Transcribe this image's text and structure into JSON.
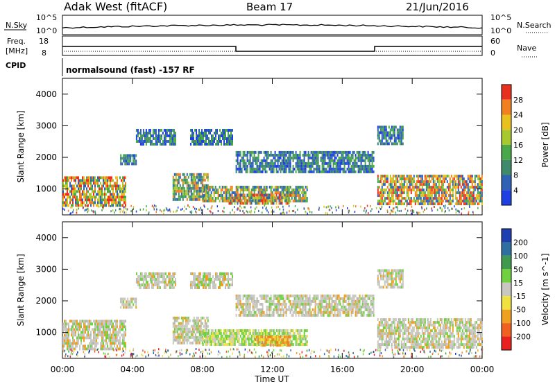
{
  "header": {
    "station": "Adak West (fitACF)",
    "beam": "Beam 17",
    "date": "21/Jun/2016"
  },
  "panels": {
    "nsky_label": "N.Sky",
    "nsearch_label": "N.Search",
    "nsky_ticks": [
      "10^5",
      "10^0"
    ],
    "nsearch_ticks": [
      "10^5",
      "10^0"
    ],
    "freq_label_line1": "Freq.",
    "freq_label_line2": "[MHz]",
    "freq_ticks": [
      "18",
      "8"
    ],
    "nave_label": "Nave",
    "nave_ticks": [
      "60",
      "0"
    ],
    "cpid_label": "CPID",
    "cpid_text": "normalsound (fast) -157 RF"
  },
  "chart_data": [
    {
      "type": "heatmap",
      "title": "",
      "ylabel": "Slant Range [km]",
      "xlabel": "",
      "x": [
        "00:00",
        "04:00",
        "08:00",
        "12:00",
        "16:00",
        "20:00",
        "00:00"
      ],
      "yticks": [
        1000,
        2000,
        3000,
        4000
      ],
      "ylim": [
        180,
        4500
      ],
      "colorbar": {
        "label": "Power [dB]",
        "ticks": [
          4,
          8,
          12,
          16,
          20,
          24,
          28
        ],
        "colors": [
          "#1f3fe0",
          "#2f62b5",
          "#3f8a6a",
          "#48a84a",
          "#a8c830",
          "#e8c020",
          "#f08020",
          "#e83020"
        ]
      },
      "series": [
        {
          "t_start": 0.0,
          "t_end": 3.6,
          "r_low": 500,
          "r_high": 1400,
          "level": "high"
        },
        {
          "t_start": 3.3,
          "t_end": 4.2,
          "r_low": 1800,
          "r_high": 2100,
          "level": "low"
        },
        {
          "t_start": 4.2,
          "t_end": 6.5,
          "r_low": 2400,
          "r_high": 2900,
          "level": "low"
        },
        {
          "t_start": 7.3,
          "t_end": 9.7,
          "r_low": 2400,
          "r_high": 2900,
          "level": "low"
        },
        {
          "t_start": 6.3,
          "t_end": 8.3,
          "r_low": 700,
          "r_high": 1500,
          "level": "mid"
        },
        {
          "t_start": 8.0,
          "t_end": 14.0,
          "r_low": 600,
          "r_high": 1100,
          "level": "mid"
        },
        {
          "t_start": 9.5,
          "t_end": 13.0,
          "r_low": 500,
          "r_high": 850,
          "level": "high"
        },
        {
          "t_start": 9.9,
          "t_end": 17.8,
          "r_low": 1550,
          "r_high": 2200,
          "level": "low"
        },
        {
          "t_start": 18.0,
          "t_end": 24.0,
          "r_low": 500,
          "r_high": 1450,
          "level": "high"
        },
        {
          "t_start": 18.0,
          "t_end": 19.5,
          "r_low": 2400,
          "r_high": 3000,
          "level": "low"
        }
      ]
    },
    {
      "type": "heatmap",
      "title": "",
      "ylabel": "Slant Range [km]",
      "xlabel": "Time UT",
      "x": [
        "00:00",
        "04:00",
        "08:00",
        "12:00",
        "16:00",
        "20:00",
        "00:00"
      ],
      "yticks": [
        1000,
        2000,
        3000,
        4000
      ],
      "ylim": [
        180,
        4500
      ],
      "colorbar": {
        "label": "Velocity [m s^-1]",
        "ticks": [
          200,
          100,
          50,
          15,
          -15,
          -50,
          -100,
          -200
        ],
        "colors": [
          "#1f3fb0",
          "#2f6fa0",
          "#3f9a50",
          "#70d040",
          "#c8c8c0",
          "#f0e040",
          "#f0a020",
          "#f06020",
          "#e82020"
        ]
      },
      "series": [
        {
          "t_start": 0.0,
          "t_end": 3.6,
          "r_low": 500,
          "r_high": 1400,
          "level": "grey"
        },
        {
          "t_start": 3.3,
          "t_end": 4.2,
          "r_low": 1800,
          "r_high": 2100,
          "level": "grey"
        },
        {
          "t_start": 4.2,
          "t_end": 6.5,
          "r_low": 2400,
          "r_high": 2900,
          "level": "grey"
        },
        {
          "t_start": 7.3,
          "t_end": 9.7,
          "r_low": 2400,
          "r_high": 2900,
          "level": "grey"
        },
        {
          "t_start": 6.3,
          "t_end": 8.3,
          "r_low": 700,
          "r_high": 1500,
          "level": "grey"
        },
        {
          "t_start": 8.0,
          "t_end": 14.0,
          "r_low": 600,
          "r_high": 1100,
          "level": "green"
        },
        {
          "t_start": 11.0,
          "t_end": 13.0,
          "r_low": 550,
          "r_high": 900,
          "level": "orange"
        },
        {
          "t_start": 9.9,
          "t_end": 17.8,
          "r_low": 1550,
          "r_high": 2200,
          "level": "grey"
        },
        {
          "t_start": 18.0,
          "t_end": 24.0,
          "r_low": 500,
          "r_high": 1450,
          "level": "grey"
        },
        {
          "t_start": 18.0,
          "t_end": 19.5,
          "r_low": 2400,
          "r_high": 3000,
          "level": "grey"
        }
      ]
    }
  ]
}
